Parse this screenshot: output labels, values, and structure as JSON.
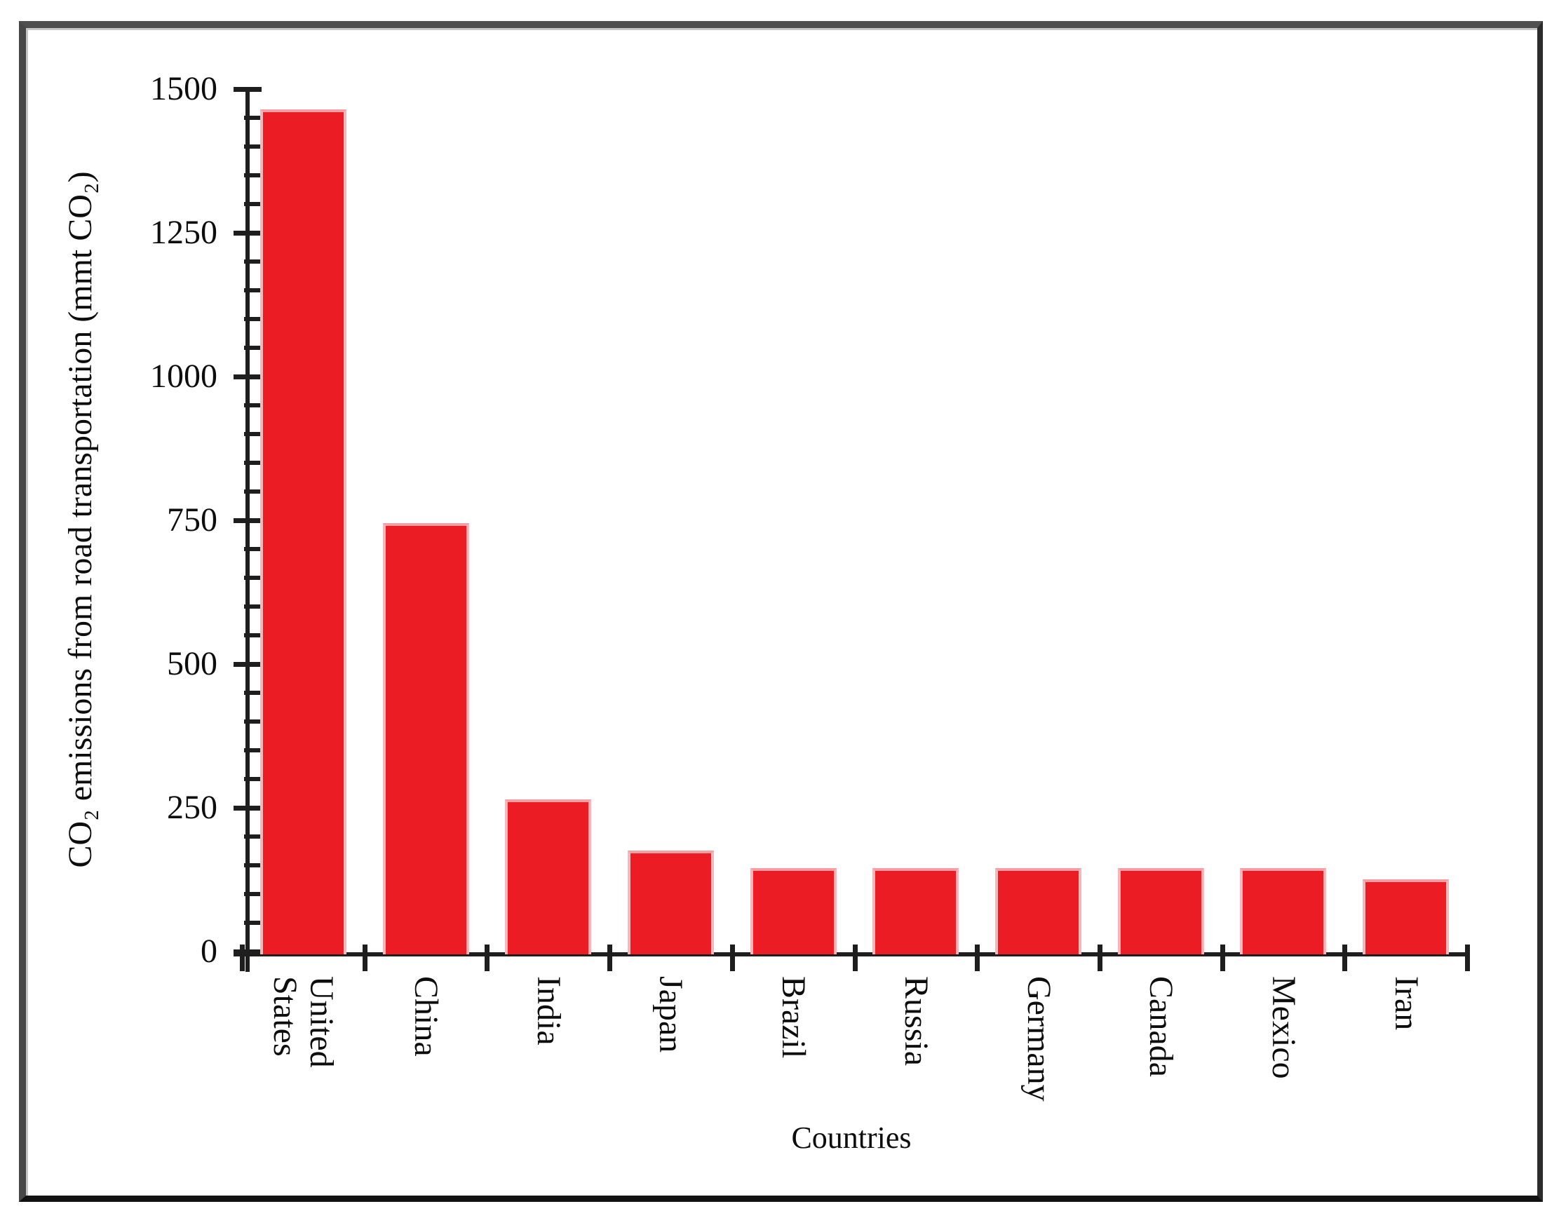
{
  "chart_data": {
    "type": "bar",
    "title": "",
    "categories": [
      "United\nStates",
      "China",
      "India",
      "Japan",
      "Brazil",
      "Russia",
      "Germany",
      "Canada",
      "Mexico",
      "Iran"
    ],
    "values": [
      1470,
      750,
      270,
      180,
      150,
      150,
      150,
      150,
      150,
      130
    ],
    "xlabel": "Countries",
    "ylabel": "CO₂ emissions from road transportation (mmt CO₂)",
    "ylim": [
      0,
      1500
    ],
    "yticks": [
      0,
      250,
      500,
      750,
      1000,
      1250,
      1500
    ],
    "ytick_step": 250,
    "yminor_step": 50,
    "grid": false,
    "legend_position": "none",
    "bar_color": "#ec1c24",
    "bar_edge_color": "#f9b6ba",
    "axis_color": "#1e1e1e",
    "frame_color": "#474747"
  }
}
